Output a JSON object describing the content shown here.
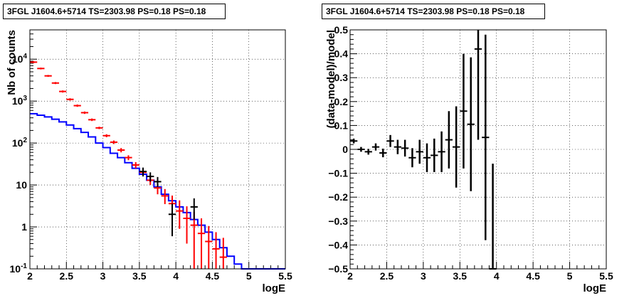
{
  "chart_data": [
    {
      "type": "step-histogram-with-errorbars",
      "title": "3FGL J1604.6+5714 TS=2303.98 PS=0.18 PS=0.18",
      "xlabel": "logE",
      "ylabel": "Nb of counts",
      "xlim": [
        2,
        5.5
      ],
      "ylim": [
        0.1,
        50000
      ],
      "yscale": "log",
      "grid": true,
      "x_ticks": [
        "2",
        "2.5",
        "3",
        "3.5",
        "4",
        "4.5",
        "5",
        "5.5"
      ],
      "y_ticks": [
        {
          "v": 0.1,
          "label": "10",
          "exp": "-1"
        },
        {
          "v": 1,
          "label": "1",
          "exp": ""
        },
        {
          "v": 10,
          "label": "10",
          "exp": ""
        },
        {
          "v": 100,
          "label": "10",
          "exp": "2"
        },
        {
          "v": 1000,
          "label": "10",
          "exp": "3"
        },
        {
          "v": 10000,
          "label": "10",
          "exp": "4"
        }
      ],
      "series": [
        {
          "color": "#0000ff",
          "style": "step",
          "edges": [
            2.0,
            2.1,
            2.2,
            2.3,
            2.4,
            2.5,
            2.6,
            2.7,
            2.8,
            2.9,
            3.0,
            3.1,
            3.2,
            3.3,
            3.4,
            3.5,
            3.6,
            3.7,
            3.8,
            3.9,
            4.0,
            4.1,
            4.2,
            4.3,
            4.4,
            4.5,
            4.6,
            4.7,
            4.8,
            4.9,
            5.0,
            5.1,
            5.2,
            5.3,
            5.4,
            5.5
          ],
          "values": [
            500,
            460,
            420,
            370,
            320,
            270,
            220,
            180,
            140,
            100,
            78,
            57,
            45,
            34,
            25,
            18,
            13,
            9,
            6,
            4.2,
            3,
            2.2,
            1.5,
            1.1,
            0.75,
            0.5,
            0.32,
            0.2,
            0.13,
            0.1,
            0.1,
            0.1,
            0.1,
            0.1,
            0.1
          ]
        },
        {
          "color": "#ff0000",
          "style": "errorbar",
          "points": [
            {
              "x": 2.05,
              "y": 8500,
              "lo": 8000,
              "hi": 9000
            },
            {
              "x": 2.15,
              "y": 6000,
              "lo": 5700,
              "hi": 6300
            },
            {
              "x": 2.25,
              "y": 4000,
              "lo": 3800,
              "hi": 4200
            },
            {
              "x": 2.35,
              "y": 2700,
              "lo": 2550,
              "hi": 2850
            },
            {
              "x": 2.45,
              "y": 1700,
              "lo": 1600,
              "hi": 1800
            },
            {
              "x": 2.55,
              "y": 1100,
              "lo": 1030,
              "hi": 1170
            },
            {
              "x": 2.65,
              "y": 780,
              "lo": 730,
              "hi": 830
            },
            {
              "x": 2.75,
              "y": 530,
              "lo": 495,
              "hi": 565
            },
            {
              "x": 2.85,
              "y": 360,
              "lo": 335,
              "hi": 385
            },
            {
              "x": 2.95,
              "y": 230,
              "lo": 215,
              "hi": 245
            },
            {
              "x": 3.05,
              "y": 150,
              "lo": 138,
              "hi": 162
            },
            {
              "x": 3.15,
              "y": 105,
              "lo": 95,
              "hi": 115
            },
            {
              "x": 3.25,
              "y": 68,
              "lo": 60,
              "hi": 76
            },
            {
              "x": 3.35,
              "y": 45,
              "lo": 39,
              "hi": 51
            },
            {
              "x": 3.45,
              "y": 30,
              "lo": 25,
              "hi": 35
            },
            {
              "x": 3.55,
              "y": 20,
              "lo": 16,
              "hi": 24
            },
            {
              "x": 3.65,
              "y": 13,
              "lo": 10,
              "hi": 16.5
            },
            {
              "x": 3.75,
              "y": 8.5,
              "lo": 6,
              "hi": 11.5
            },
            {
              "x": 3.85,
              "y": 5.5,
              "lo": 3.5,
              "hi": 8
            },
            {
              "x": 3.95,
              "y": 3.6,
              "lo": 2,
              "hi": 5.6
            },
            {
              "x": 4.05,
              "y": 2.4,
              "lo": 0.9,
              "hi": 4.3
            },
            {
              "x": 4.15,
              "y": 1.6,
              "lo": 0.4,
              "hi": 3.1
            },
            {
              "x": 4.25,
              "y": 1.1,
              "lo": 0.1,
              "hi": 2.3
            },
            {
              "x": 4.35,
              "y": 0.7,
              "lo": 0.1,
              "hi": 1.6
            },
            {
              "x": 4.45,
              "y": 0.45,
              "lo": 0.1,
              "hi": 1.05
            },
            {
              "x": 4.55,
              "y": 0.3,
              "lo": 0.1,
              "hi": 0.75
            },
            {
              "x": 4.65,
              "y": 0.19,
              "lo": 0.1,
              "hi": 0.55
            }
          ]
        },
        {
          "color": "#000000",
          "style": "errorbar",
          "points": [
            {
              "x": 3.55,
              "y": 21,
              "lo": 16,
              "hi": 26
            },
            {
              "x": 3.65,
              "y": 16,
              "lo": 12,
              "hi": 20
            },
            {
              "x": 3.75,
              "y": 12,
              "lo": 9,
              "hi": 15.5
            },
            {
              "x": 3.95,
              "y": 2,
              "lo": 0.6,
              "hi": 3.6
            },
            {
              "x": 4.25,
              "y": 3,
              "lo": 1.5,
              "hi": 4.8
            }
          ]
        }
      ]
    },
    {
      "type": "scatter-with-errorbars",
      "title": "3FGL J1604.6+5714 TS=2303.98 PS=0.18 PS=0.18",
      "xlabel": "logE",
      "ylabel": "(data-model)/model",
      "xlim": [
        2,
        5.5
      ],
      "ylim": [
        -0.5,
        0.5
      ],
      "grid": true,
      "x_ticks": [
        "2",
        "2.5",
        "3",
        "3.5",
        "4",
        "4.5",
        "5",
        "5.5"
      ],
      "y_ticks": [
        "−0.5",
        "−0.4",
        "−0.3",
        "−0.2",
        "−0.1",
        "0",
        "0.1",
        "0.2",
        "0.3",
        "0.4",
        "0.5"
      ],
      "series": [
        {
          "color": "#000000",
          "points": [
            {
              "x": 2.05,
              "y": 0.035,
              "e": 0.01
            },
            {
              "x": 2.15,
              "y": 0.0,
              "e": 0.01
            },
            {
              "x": 2.25,
              "y": -0.01,
              "e": 0.012
            },
            {
              "x": 2.35,
              "y": 0.01,
              "e": 0.015
            },
            {
              "x": 2.45,
              "y": -0.015,
              "e": 0.018
            },
            {
              "x": 2.55,
              "y": 0.035,
              "e": 0.025
            },
            {
              "x": 2.65,
              "y": 0.01,
              "e": 0.03
            },
            {
              "x": 2.75,
              "y": 0.005,
              "e": 0.035
            },
            {
              "x": 2.85,
              "y": -0.035,
              "e": 0.04
            },
            {
              "x": 2.95,
              "y": -0.01,
              "e": 0.05
            },
            {
              "x": 3.05,
              "y": -0.035,
              "e": 0.06
            },
            {
              "x": 3.15,
              "y": -0.025,
              "e": 0.07
            },
            {
              "x": 3.25,
              "y": -0.01,
              "e": 0.085
            },
            {
              "x": 3.35,
              "y": 0.04,
              "e": 0.12
            },
            {
              "x": 3.45,
              "y": 0.01,
              "e": 0.17
            },
            {
              "x": 3.55,
              "y": 0.16,
              "e": 0.24
            },
            {
              "x": 3.65,
              "y": 0.105,
              "e": 0.28
            },
            {
              "x": 3.75,
              "y": 0.42,
              "e": 0.38
            },
            {
              "x": 3.85,
              "y": 0.05,
              "e": 0.43
            },
            {
              "x": 3.95,
              "y": -0.5,
              "e": 0.44
            }
          ]
        }
      ]
    }
  ]
}
